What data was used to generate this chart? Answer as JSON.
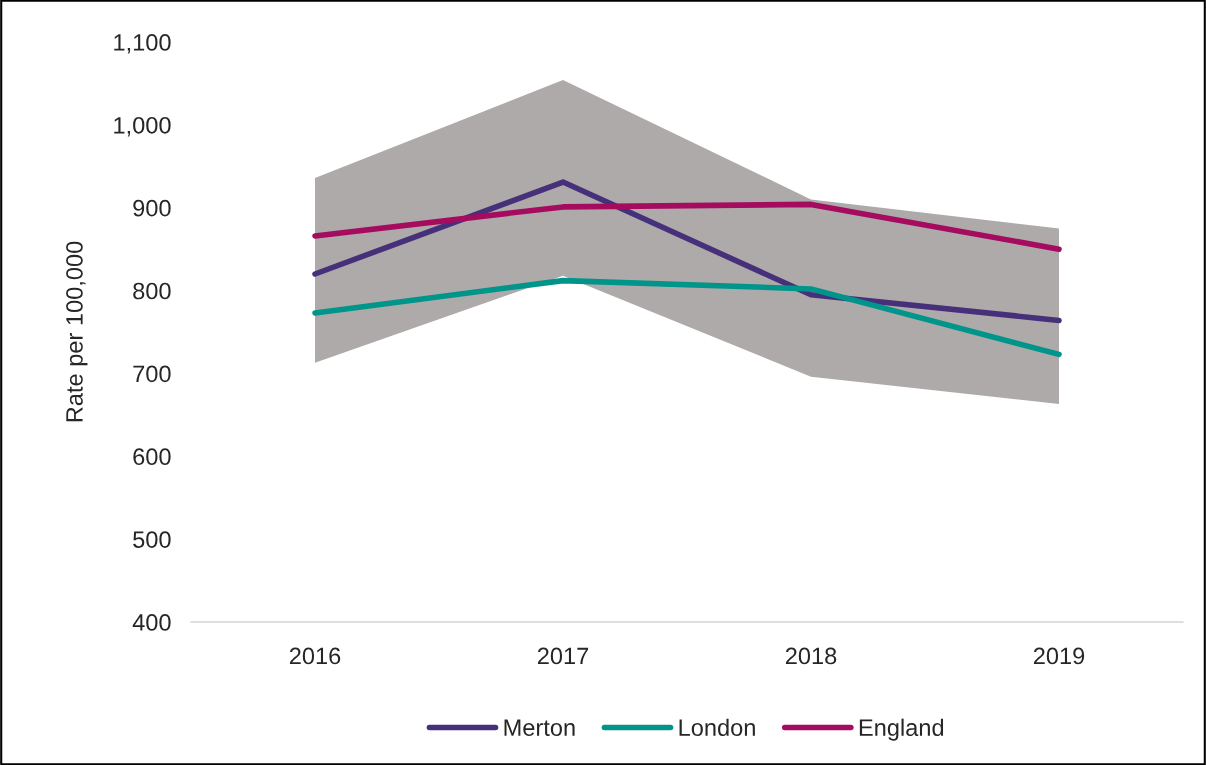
{
  "chart_data": {
    "type": "line",
    "ylabel": "Rate per 100,000",
    "categories": [
      "2016",
      "2017",
      "2018",
      "2019"
    ],
    "series": [
      {
        "name": "Merton",
        "color": "#47307a",
        "values": [
          820,
          931,
          795,
          764
        ],
        "lower": [
          713,
          818,
          696,
          663
        ],
        "upper": [
          936,
          1054,
          910,
          875
        ]
      },
      {
        "name": "London",
        "color": "#00958a",
        "values": [
          773,
          812,
          802,
          723
        ]
      },
      {
        "name": "England",
        "color": "#a50b5e",
        "values": [
          866,
          901,
          904,
          850
        ]
      }
    ],
    "ylim": [
      400,
      1100
    ],
    "yticks": [
      {
        "value": 400,
        "label": "400"
      },
      {
        "value": 500,
        "label": "500"
      },
      {
        "value": 600,
        "label": "600"
      },
      {
        "value": 700,
        "label": "700"
      },
      {
        "value": 800,
        "label": "800"
      },
      {
        "value": 900,
        "label": "900"
      },
      {
        "value": 1000,
        "label": "1,000"
      },
      {
        "value": 1100,
        "label": "1,100"
      }
    ],
    "grid": false,
    "legend": "bottom",
    "line_style": "solid",
    "marker": "none"
  }
}
